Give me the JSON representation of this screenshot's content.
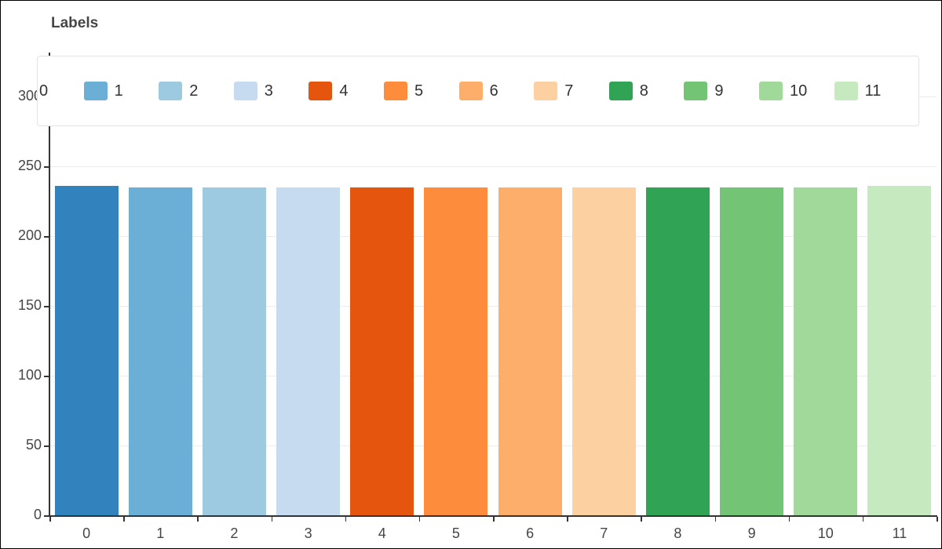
{
  "page": {
    "background": "#ffffff",
    "frame_border_color": "#000000"
  },
  "chart_data": {
    "type": "bar",
    "title": "Labels",
    "xlabel": "",
    "ylabel": "",
    "categories": [
      "0",
      "1",
      "2",
      "3",
      "4",
      "5",
      "6",
      "7",
      "8",
      "9",
      "10",
      "11"
    ],
    "values": [
      236,
      235,
      235,
      235,
      235,
      235,
      235,
      235,
      235,
      235,
      235,
      236
    ],
    "colors": [
      "#3182bd",
      "#6baed6",
      "#9ecae1",
      "#c6dbef",
      "#e6550d",
      "#fd8d3c",
      "#fdae6b",
      "#fdd0a2",
      "#31a354",
      "#74c476",
      "#a1d99b",
      "#c7e9c0"
    ],
    "y_ticks": [
      0,
      50,
      100,
      150,
      200,
      250,
      300
    ],
    "ylim": [
      0,
      332
    ],
    "grid": true,
    "legend": {
      "position": "top",
      "items": [
        {
          "label": "0",
          "color": "#3182bd"
        },
        {
          "label": "1",
          "color": "#6baed6"
        },
        {
          "label": "2",
          "color": "#9ecae1"
        },
        {
          "label": "3",
          "color": "#c6dbef"
        },
        {
          "label": "4",
          "color": "#e6550d"
        },
        {
          "label": "5",
          "color": "#fd8d3c"
        },
        {
          "label": "6",
          "color": "#fdae6b"
        },
        {
          "label": "7",
          "color": "#fdd0a2"
        },
        {
          "label": "8",
          "color": "#31a354"
        },
        {
          "label": "9",
          "color": "#74c476"
        },
        {
          "label": "10",
          "color": "#a1d99b"
        },
        {
          "label": "11",
          "color": "#c7e9c0"
        }
      ]
    }
  }
}
